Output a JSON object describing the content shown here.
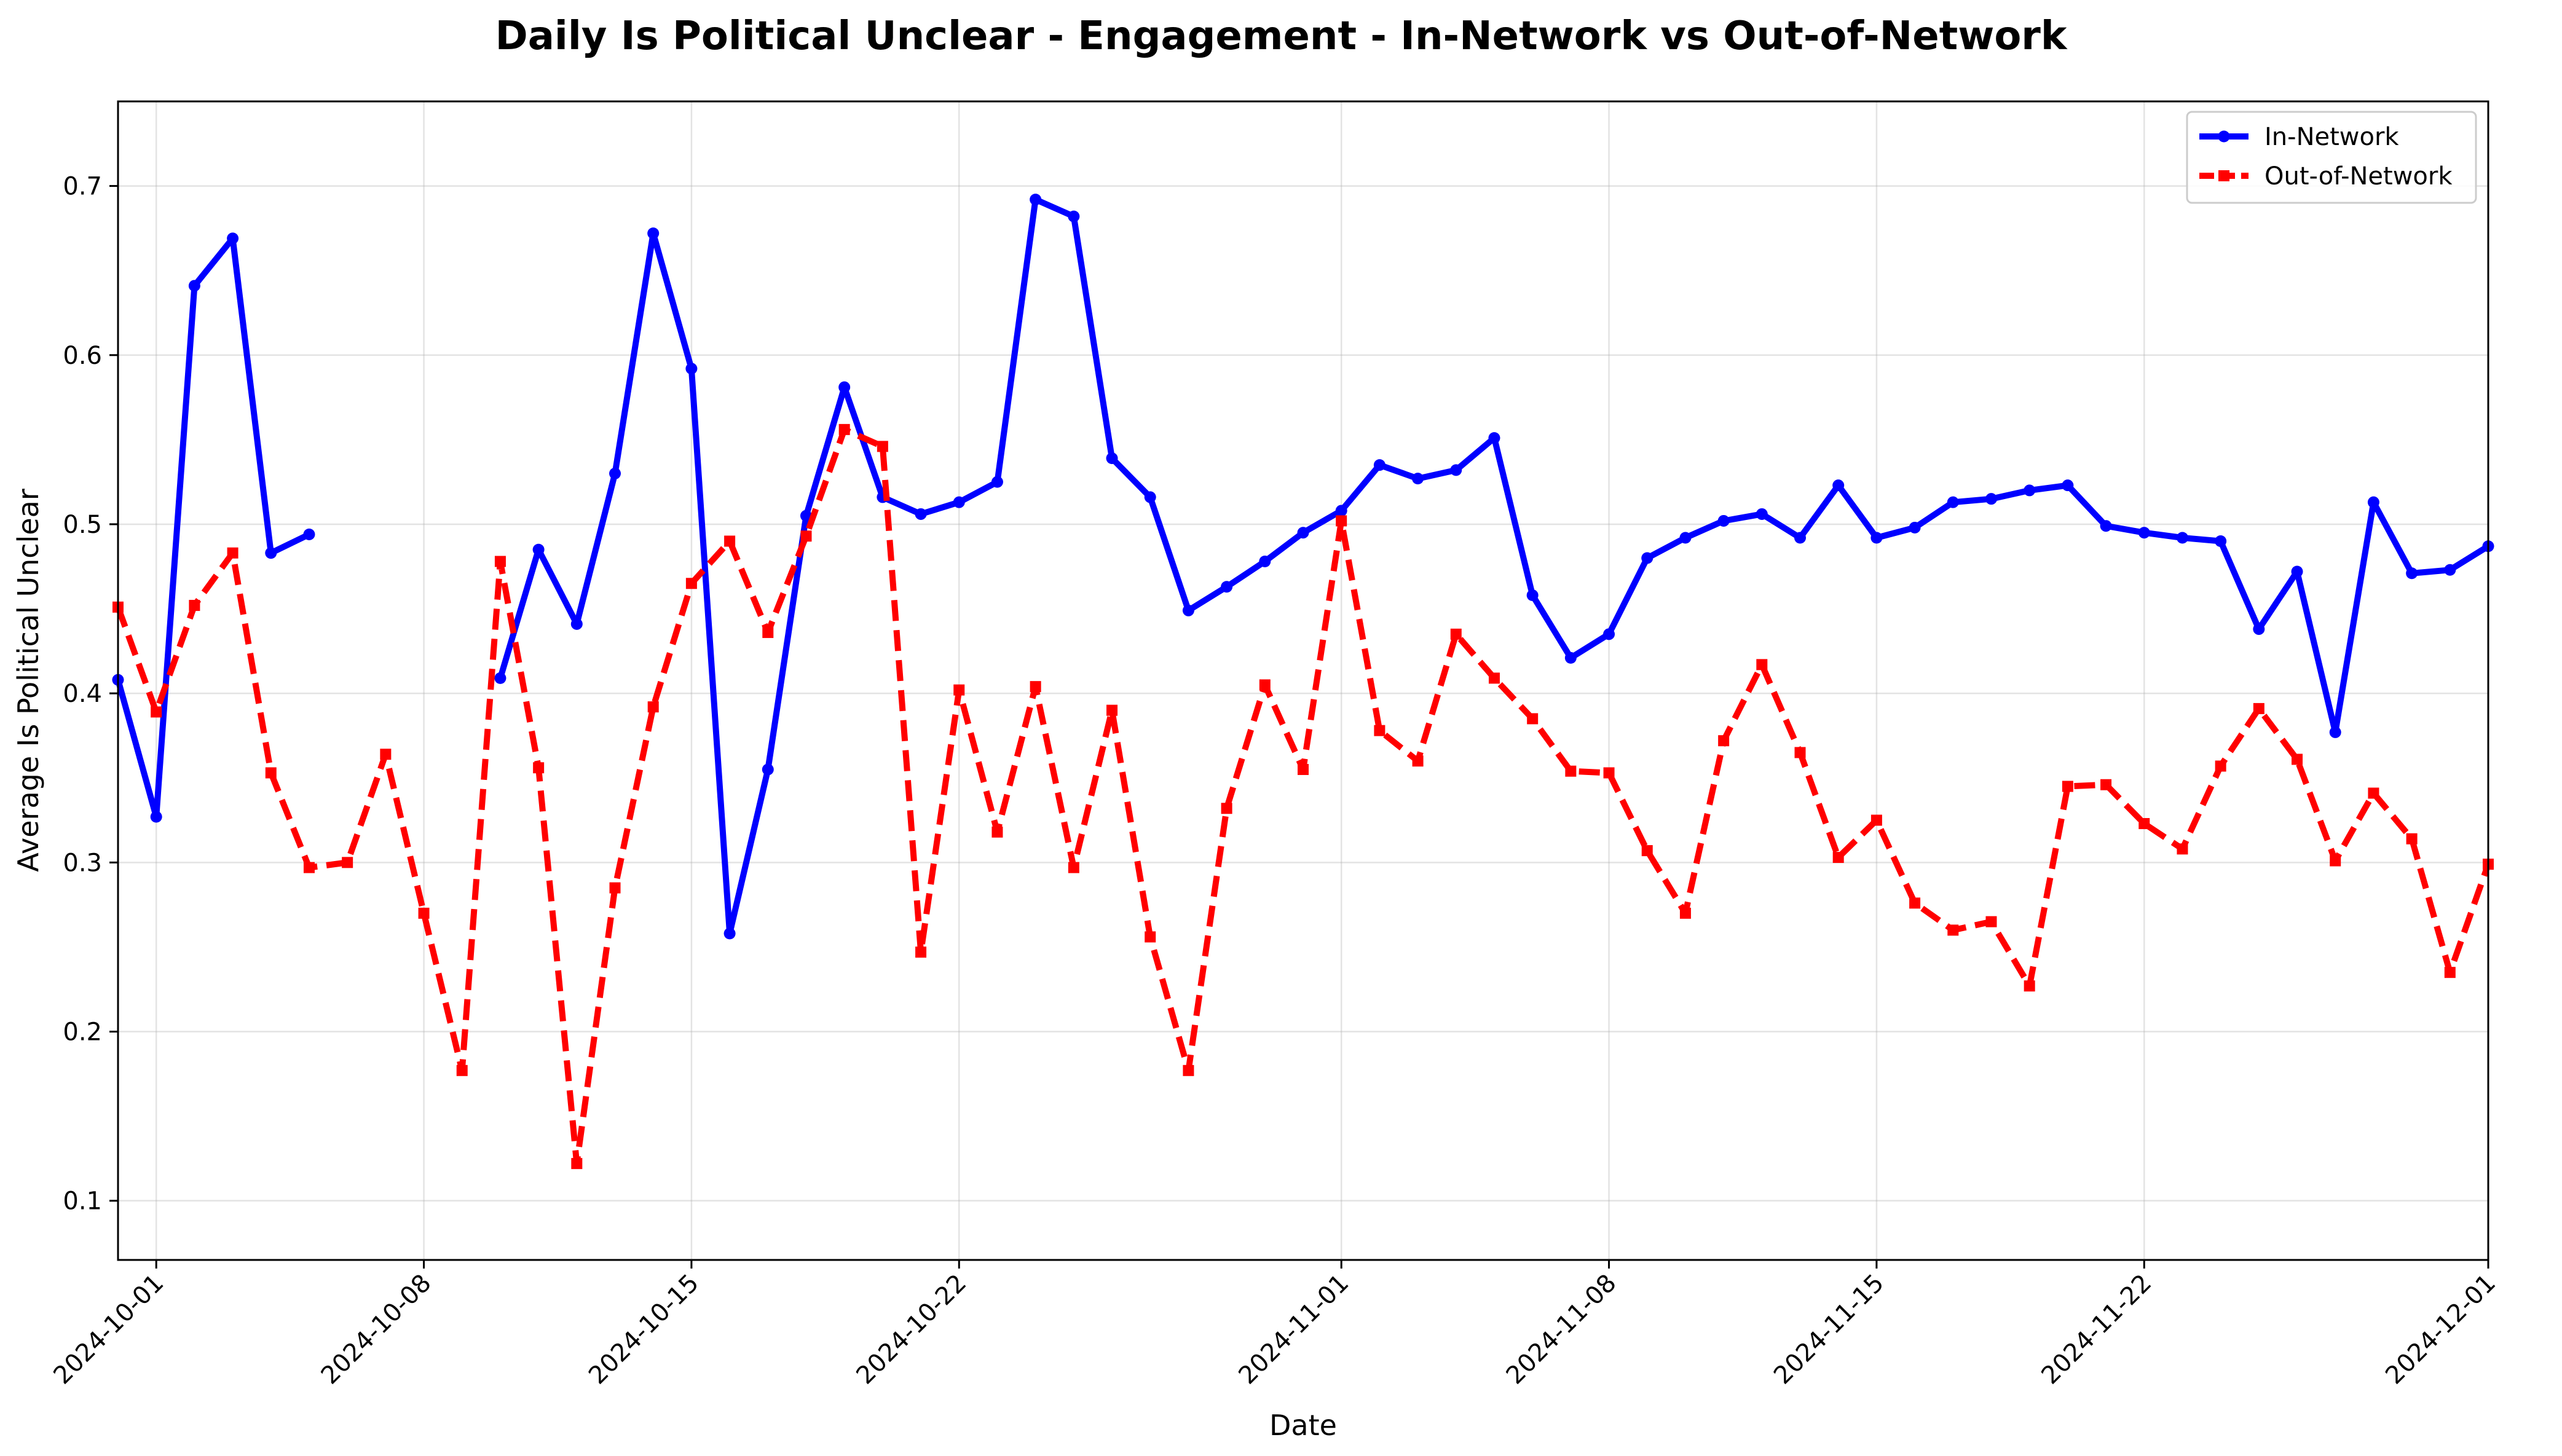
{
  "chart_data": {
    "type": "line",
    "title": "Daily Is Political Unclear - Engagement - In-Network vs Out-of-Network",
    "xlabel": "Date",
    "ylabel": "Average Is Political Unclear",
    "x_start": "2024-09-30",
    "xlim": [
      "2024-09-30",
      "2024-12-01"
    ],
    "ylim": [
      0.065,
      0.75
    ],
    "yticks": [
      "0.1",
      "0.2",
      "0.3",
      "0.4",
      "0.5",
      "0.6",
      "0.7"
    ],
    "xticks": [
      "2024-10-01",
      "2024-10-08",
      "2024-10-15",
      "2024-10-22",
      "2024-11-01",
      "2024-11-08",
      "2024-11-15",
      "2024-11-22",
      "2024-12-01"
    ],
    "grid": true,
    "legend_position": "top-right",
    "series": [
      {
        "name": "In-Network",
        "color": "#0000ff",
        "style": "solid",
        "marker": "circle",
        "values": [
          0.408,
          0.327,
          0.641,
          0.669,
          0.483,
          0.494,
          null,
          null,
          null,
          null,
          0.409,
          0.485,
          0.441,
          0.53,
          0.672,
          0.592,
          0.258,
          0.355,
          0.505,
          0.581,
          0.516,
          0.506,
          0.513,
          0.525,
          0.692,
          0.682,
          0.539,
          0.516,
          0.449,
          0.463,
          0.478,
          0.495,
          0.508,
          0.535,
          0.527,
          0.532,
          0.551,
          0.458,
          0.421,
          0.435,
          0.48,
          0.492,
          0.502,
          0.506,
          0.492,
          0.523,
          0.492,
          0.498,
          0.513,
          0.515,
          0.52,
          0.523,
          0.499,
          0.495,
          0.492,
          0.49,
          0.438,
          0.472,
          0.377,
          0.513,
          0.471,
          0.473,
          0.487
        ]
      },
      {
        "name": "Out-of-Network",
        "color": "#ff0000",
        "style": "dashed",
        "marker": "square",
        "values": [
          0.451,
          0.389,
          0.452,
          0.483,
          0.353,
          0.297,
          0.3,
          0.364,
          0.27,
          0.177,
          0.478,
          0.356,
          0.122,
          0.285,
          0.392,
          0.465,
          0.49,
          0.436,
          0.493,
          0.556,
          0.546,
          0.247,
          0.402,
          0.318,
          0.404,
          0.297,
          0.39,
          0.256,
          0.177,
          0.332,
          0.405,
          0.355,
          0.502,
          0.378,
          0.36,
          0.435,
          0.409,
          0.385,
          0.354,
          0.353,
          0.307,
          0.27,
          0.372,
          0.417,
          0.365,
          0.303,
          0.325,
          0.276,
          0.26,
          0.265,
          0.227,
          0.345,
          0.346,
          0.323,
          0.308,
          0.357,
          0.391,
          0.361,
          0.301,
          0.341,
          0.314,
          0.235,
          0.299
        ]
      }
    ]
  }
}
